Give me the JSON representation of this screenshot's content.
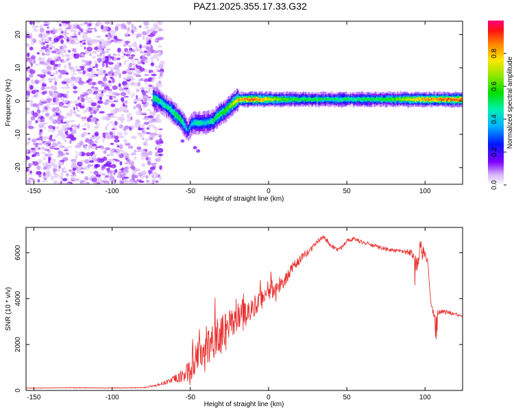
{
  "title": "PAZ1.2025.355.17.33.G32",
  "chart_data": [
    {
      "type": "heatmap",
      "name": "spectrogram",
      "xlabel": "Height of straight line (km)",
      "ylabel": "Frequency (Hz)",
      "xlim": [
        -155,
        124
      ],
      "ylim": [
        -25,
        24
      ],
      "xticks": [
        -150,
        -100,
        -50,
        0,
        50,
        100
      ],
      "yticks": [
        -20,
        -10,
        0,
        10,
        20
      ],
      "noise_region_x": [
        -155,
        -72
      ],
      "ridge": {
        "x": [
          -74,
          -70,
          -66,
          -62,
          -58,
          -55,
          -52,
          -50,
          -47,
          -44,
          -40,
          -36,
          -32,
          -28,
          -24,
          -20,
          -15,
          -10,
          -5,
          0,
          10,
          20,
          40,
          60,
          80,
          100,
          124
        ],
        "y": [
          1,
          0,
          -1.5,
          -3,
          -5,
          -6.5,
          -9,
          -7,
          -6.5,
          -6.5,
          -6.5,
          -6,
          -4,
          -3,
          -1,
          0.5,
          0.5,
          0.5,
          0.5,
          0.5,
          0.5,
          0.5,
          0.5,
          0.5,
          0.5,
          0.5,
          0.5
        ],
        "amplitude": [
          0.55,
          0.5,
          0.45,
          0.5,
          0.55,
          0.5,
          0.3,
          0.4,
          0.45,
          0.45,
          0.4,
          0.5,
          0.55,
          0.6,
          0.65,
          0.8,
          0.85,
          0.9,
          0.85,
          0.75,
          0.6,
          0.55,
          0.5,
          0.5,
          0.6,
          0.85,
          0.9
        ]
      },
      "colorbar": {
        "label": "Normalized spectral amplitude",
        "range": [
          0,
          1
        ],
        "ticks": [
          "0.0",
          "0.2",
          "0.4",
          "0.6",
          "0.8"
        ],
        "tick_values": [
          0.0,
          0.2,
          0.4,
          0.6,
          0.8
        ]
      }
    },
    {
      "type": "line",
      "name": "snr",
      "xlabel": "Height of straight line (km)",
      "ylabel": "SNR (10 * v/v)",
      "xlim": [
        -155,
        124
      ],
      "ylim": [
        0,
        7100
      ],
      "xticks": [
        -150,
        -100,
        -50,
        0,
        50,
        100
      ],
      "yticks": [
        0,
        2000,
        4000,
        6000
      ],
      "color": "#e8312f",
      "series": [
        {
          "name": "SNR",
          "x": [
            -155,
            -130,
            -100,
            -80,
            -70,
            -60,
            -55,
            -50,
            -45,
            -40,
            -35,
            -30,
            -25,
            -20,
            -15,
            -10,
            -5,
            0,
            5,
            10,
            15,
            20,
            25,
            30,
            35,
            40,
            45,
            50,
            55,
            60,
            65,
            70,
            75,
            80,
            85,
            90,
            93,
            95,
            97,
            100,
            102,
            104,
            106,
            110,
            115,
            120,
            124
          ],
          "y": [
            100,
            120,
            110,
            120,
            250,
            500,
            600,
            900,
            1500,
            1900,
            2200,
            2500,
            3000,
            3100,
            3400,
            3600,
            4000,
            4300,
            4400,
            4700,
            5300,
            5700,
            6000,
            6400,
            6700,
            6300,
            6100,
            6550,
            6600,
            6450,
            6350,
            6250,
            6150,
            6100,
            6050,
            6000,
            6000,
            5200,
            6100,
            5900,
            5500,
            3500,
            3300,
            3450,
            3400,
            3300,
            3250
          ],
          "noise": [
            10,
            15,
            15,
            20,
            60,
            150,
            250,
            500,
            700,
            800,
            800,
            800,
            700,
            600,
            550,
            500,
            450,
            400,
            350,
            300,
            250,
            200,
            150,
            100,
            100,
            100,
            100,
            100,
            80,
            80,
            80,
            80,
            80,
            80,
            90,
            120,
            300,
            500,
            500,
            150,
            200,
            250,
            150,
            100,
            100,
            80,
            60
          ]
        }
      ]
    }
  ]
}
